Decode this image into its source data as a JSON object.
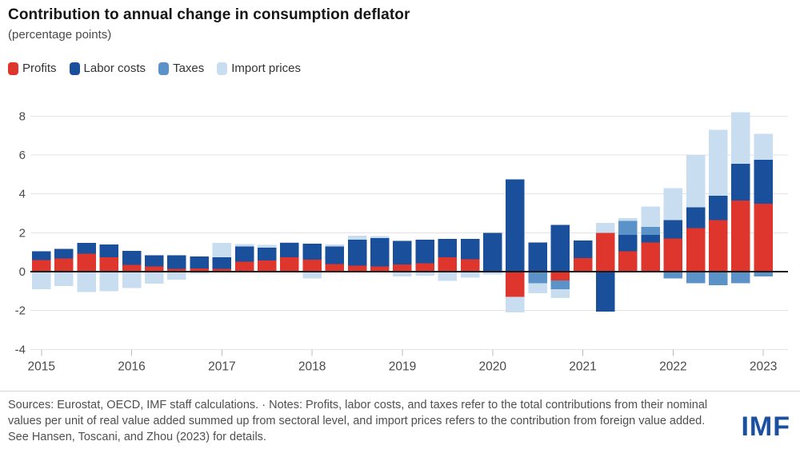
{
  "header": {
    "title": "Contribution to annual change in consumption deflator",
    "subtitle": "(percentage points)"
  },
  "legend": {
    "items": [
      {
        "label": "Profits",
        "color": "#de352c"
      },
      {
        "label": "Labor costs",
        "color": "#1a4f9c"
      },
      {
        "label": "Taxes",
        "color": "#5b93c8"
      },
      {
        "label": "Import prices",
        "color": "#c9ddf0"
      }
    ]
  },
  "footer": {
    "source_note": "Sources: Eurostat, OECD, IMF staff calculations. · Notes: Profits, labor costs, and taxes refer to the total contributions from their nominal values per unit of real value added summed up from sectoral level, and import prices refers to the contribution from foreign value added. See Hansen, Toscani, and Zhou (2023) for details.",
    "logo": "IMF"
  },
  "chart_data": {
    "type": "bar",
    "stacked": true,
    "x": [
      "2015Q1",
      "2015Q2",
      "2015Q3",
      "2015Q4",
      "2016Q1",
      "2016Q2",
      "2016Q3",
      "2016Q4",
      "2017Q1",
      "2017Q2",
      "2017Q3",
      "2017Q4",
      "2018Q1",
      "2018Q2",
      "2018Q3",
      "2018Q4",
      "2019Q1",
      "2019Q2",
      "2019Q3",
      "2019Q4",
      "2020Q1",
      "2020Q2",
      "2020Q3",
      "2020Q4",
      "2021Q1",
      "2021Q2",
      "2021Q3",
      "2021Q4",
      "2022Q1",
      "2022Q2",
      "2022Q3",
      "2022Q4",
      "2023Q1"
    ],
    "series": [
      {
        "name": "Profits",
        "color": "#de352c",
        "values": [
          0.6,
          0.68,
          0.93,
          0.75,
          0.34,
          0.27,
          0.14,
          0.16,
          0.14,
          0.52,
          0.58,
          0.75,
          0.62,
          0.4,
          0.3,
          0.27,
          0.38,
          0.44,
          0.73,
          0.64,
          0.0,
          -1.3,
          0.0,
          -0.45,
          0.7,
          2.0,
          1.05,
          1.5,
          1.7,
          2.25,
          2.65,
          3.65,
          3.5
        ]
      },
      {
        "name": "Labor costs",
        "color": "#1a4f9c",
        "values": [
          0.45,
          0.5,
          0.55,
          0.65,
          0.73,
          0.58,
          0.71,
          0.63,
          0.61,
          0.78,
          0.65,
          0.73,
          0.82,
          0.9,
          1.35,
          1.45,
          1.2,
          1.2,
          0.95,
          1.05,
          2.0,
          4.75,
          1.5,
          2.4,
          0.9,
          -2.05,
          0.85,
          0.4,
          0.95,
          1.05,
          1.25,
          1.9,
          2.25
        ]
      },
      {
        "name": "Taxes",
        "color": "#5b93c8",
        "values": [
          0,
          0,
          0,
          0,
          0,
          0,
          0,
          0,
          0,
          0,
          0,
          0,
          0,
          0,
          0,
          0,
          0,
          0,
          0,
          0,
          0,
          0,
          -0.6,
          -0.45,
          0,
          0,
          0.7,
          0.4,
          -0.35,
          -0.6,
          -0.7,
          -0.6,
          -0.25
        ]
      },
      {
        "name": "Import prices",
        "color": "#c9ddf0",
        "values": [
          -0.9,
          -0.75,
          -1.05,
          -1.0,
          -0.85,
          -0.62,
          -0.41,
          -0.1,
          0.73,
          0.11,
          0.14,
          0.05,
          -0.34,
          0.1,
          0.2,
          0.1,
          -0.25,
          -0.2,
          -0.48,
          -0.3,
          -0.15,
          -0.8,
          -0.5,
          -0.45,
          0.0,
          0.5,
          0.15,
          1.05,
          1.65,
          2.7,
          3.4,
          2.65,
          1.35
        ]
      }
    ],
    "title": "Contribution to annual change in consumption deflator",
    "xlabel": "",
    "ylabel": "percentage points",
    "ylim": [
      -4,
      8
    ],
    "yticks": [
      8,
      6,
      4,
      2,
      0,
      -2,
      -4
    ],
    "xtick_labels": [
      "2015",
      "2016",
      "2017",
      "2018",
      "2019",
      "2020",
      "2021",
      "2022",
      "2023"
    ],
    "grid": true,
    "legend_position": "top-left"
  },
  "style": {
    "grid_color": "#e3e3e3",
    "zero_line_color": "#1a1a1a",
    "axis_label_color": "#4a4a4a"
  }
}
